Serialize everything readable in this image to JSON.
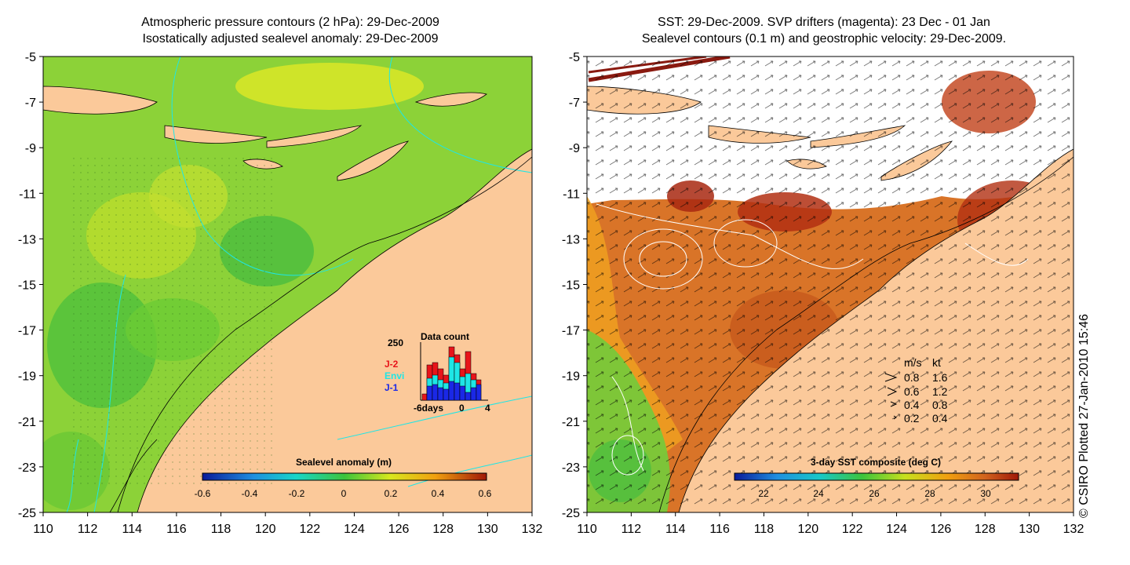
{
  "left_panel": {
    "title_line1": "Atmospheric pressure contours (2 hPa): 29-Dec-2009",
    "title_line2": "Isostatically adjusted sealevel anomaly: 29-Dec-2009",
    "colorbar_label": "Sealevel anomaly (m)",
    "colorbar_ticks": [
      "-0.6",
      "-0.4",
      "-0.2",
      "0",
      "0.2",
      "0.4",
      "0.6"
    ],
    "inset": {
      "title": "Data count",
      "y_max_label": "250",
      "x_labels": [
        "-6days",
        "0",
        "4"
      ],
      "legend": [
        {
          "label": "J-2",
          "color": "#e8141a"
        },
        {
          "label": "Envi",
          "color": "#1ee6e6"
        },
        {
          "label": "J-1",
          "color": "#1a28e6"
        }
      ]
    }
  },
  "right_panel": {
    "title_line1": "SST: 29-Dec-2009. SVP drifters (magenta): 23 Dec - 01 Jan",
    "title_line2": "Sealevel contours (0.1 m) and geostrophic velocity: 29-Dec-2009.",
    "colorbar_label": "3-day SST composite (deg C)",
    "colorbar_ticks": [
      "22",
      "24",
      "26",
      "28",
      "30"
    ],
    "velocity_legend": {
      "header_ms": "m/s",
      "header_kt": "kt",
      "rows": [
        {
          "ms": "0.8",
          "kt": "1.6"
        },
        {
          "ms": "0.6",
          "kt": "1.2"
        },
        {
          "ms": "0.4",
          "kt": "0.8"
        },
        {
          "ms": "0.2",
          "kt": "0.4"
        }
      ]
    }
  },
  "axes": {
    "lat_ticks": [
      "-5",
      "-7",
      "-9",
      "-11",
      "-13",
      "-15",
      "-17",
      "-19",
      "-21",
      "-23",
      "-25"
    ],
    "lon_ticks": [
      "110",
      "112",
      "114",
      "116",
      "118",
      "120",
      "122",
      "124",
      "126",
      "128",
      "130",
      "132"
    ]
  },
  "credit": "© CSIRO Plotted 27-Jan-2010 15:46",
  "colors": {
    "land": "#fbc99a",
    "ocean_green": "#8cd238",
    "sst_warm": "#d2641e",
    "sst_hot": "#aa2810"
  }
}
